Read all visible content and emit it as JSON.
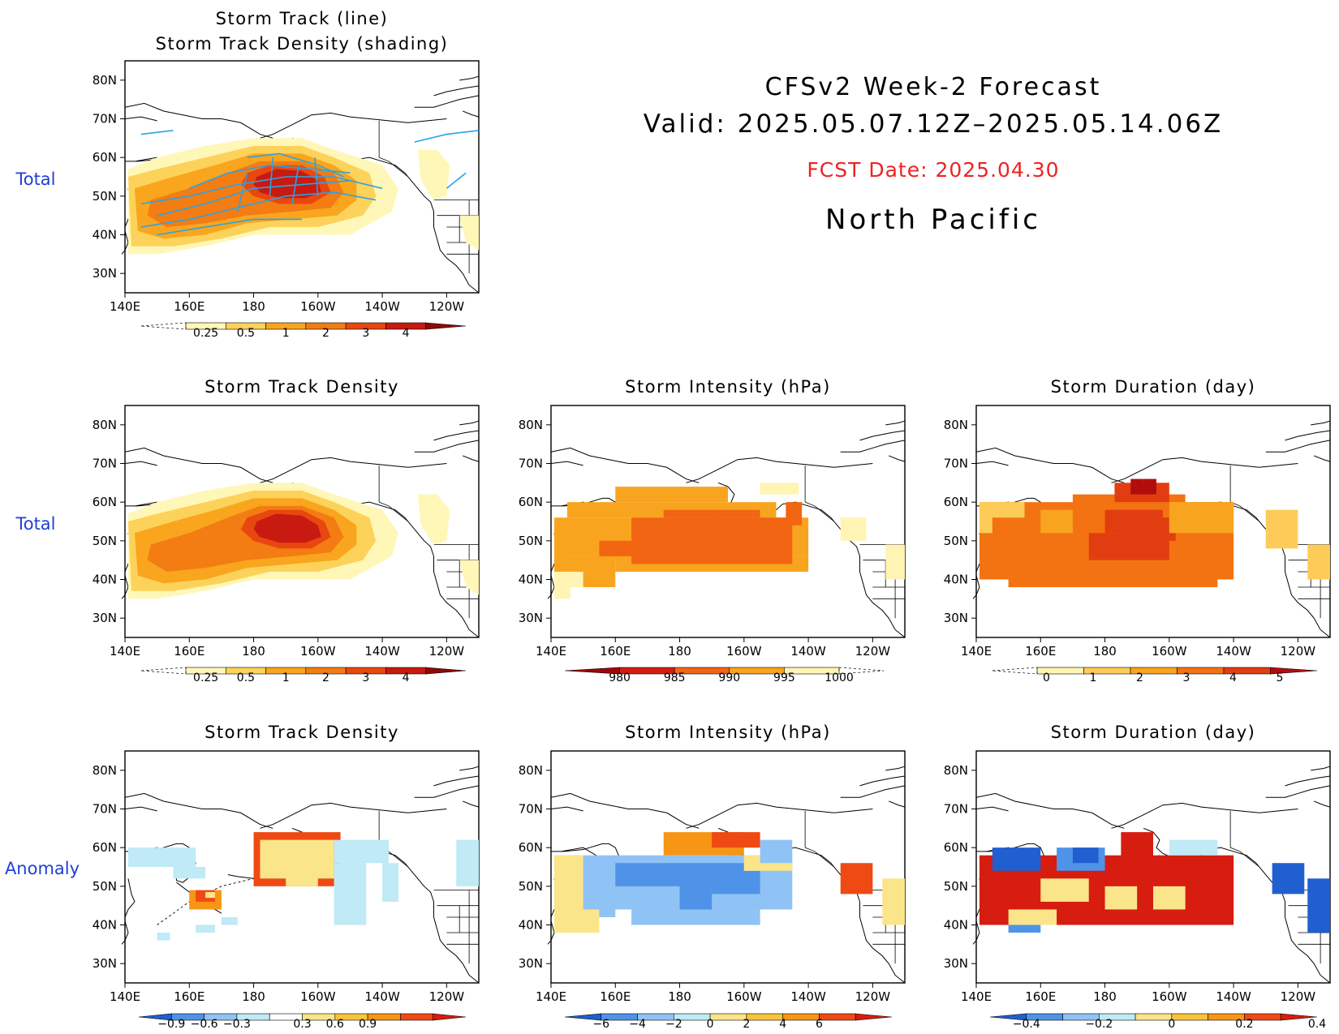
{
  "header": {
    "title": "CFSv2 Week-2 Forecast",
    "valid": "Valid: 2025.05.07.12Z–2025.05.14.06Z",
    "fcst_date": "FCST Date: 2025.04.30",
    "region": "North Pacific"
  },
  "row_labels": [
    "Total",
    "Total",
    "Anomaly"
  ],
  "colors": {
    "density": [
      "#fff7b8",
      "#fdd25a",
      "#f9a51e",
      "#f37c13",
      "#e84710",
      "#c81a10",
      "#8e0808"
    ],
    "intensity_total": [
      "#a00606",
      "#d51c10",
      "#f26512",
      "#f9a41e",
      "#fff4b4"
    ],
    "duration_total": [
      "#fff4b4",
      "#fdcc58",
      "#f9a41e",
      "#f37312",
      "#e23d10",
      "#b20d0d"
    ],
    "anomaly_neg": [
      "#1f5fd0",
      "#4f93e8",
      "#8fc3f5",
      "#bfeaf6"
    ],
    "anomaly_pos": [
      "#fbe58a",
      "#f9c43a",
      "#f79514",
      "#ef4a14",
      "#d71c10"
    ],
    "track_line": "#2aa3e5",
    "row_label": "#1f3fd6",
    "fcst": "#ee2222"
  },
  "chart_data": [
    {
      "id": "storm-track-line",
      "type": "heatmap",
      "title_lines": [
        "Storm Track (line)",
        "Storm Track Density (shading)"
      ],
      "x_ticks": [
        "140E",
        "160E",
        "180",
        "160W",
        "140W",
        "120W"
      ],
      "y_ticks": [
        "80N",
        "70N",
        "60N",
        "50N",
        "40N",
        "30N"
      ],
      "xlim": [
        140,
        250
      ],
      "ylim": [
        25,
        85
      ],
      "colorbar": {
        "labels": [
          "0.25",
          "0.5",
          "1",
          "2",
          "3",
          "4"
        ]
      }
    },
    {
      "id": "track-density-total",
      "type": "heatmap",
      "title": "Storm Track Density",
      "x_ticks": [
        "140E",
        "160E",
        "180",
        "160W",
        "140W",
        "120W"
      ],
      "y_ticks": [
        "80N",
        "70N",
        "60N",
        "50N",
        "40N",
        "30N"
      ],
      "xlim": [
        140,
        250
      ],
      "ylim": [
        25,
        85
      ],
      "colorbar": {
        "labels": [
          "0.25",
          "0.5",
          "1",
          "2",
          "3",
          "4"
        ]
      }
    },
    {
      "id": "intensity-total",
      "type": "heatmap",
      "title": "Storm Intensity (hPa)",
      "x_ticks": [
        "140E",
        "160E",
        "180",
        "160W",
        "140W",
        "120W"
      ],
      "y_ticks": [
        "80N",
        "70N",
        "60N",
        "50N",
        "40N",
        "30N"
      ],
      "xlim": [
        140,
        250
      ],
      "ylim": [
        25,
        85
      ],
      "colorbar": {
        "labels": [
          "980",
          "985",
          "990",
          "995",
          "1000"
        ]
      }
    },
    {
      "id": "duration-total",
      "type": "heatmap",
      "title": "Storm Duration (day)",
      "x_ticks": [
        "140E",
        "160E",
        "180",
        "160W",
        "140W",
        "120W"
      ],
      "y_ticks": [
        "80N",
        "70N",
        "60N",
        "50N",
        "40N",
        "30N"
      ],
      "xlim": [
        140,
        250
      ],
      "ylim": [
        25,
        85
      ],
      "colorbar": {
        "labels": [
          "0",
          "1",
          "2",
          "3",
          "4",
          "5"
        ]
      }
    },
    {
      "id": "track-density-anomaly",
      "type": "heatmap",
      "title": "Storm Track Density",
      "x_ticks": [
        "140E",
        "160E",
        "180",
        "160W",
        "140W",
        "120W"
      ],
      "y_ticks": [
        "80N",
        "70N",
        "60N",
        "50N",
        "40N",
        "30N"
      ],
      "xlim": [
        140,
        250
      ],
      "ylim": [
        25,
        85
      ],
      "colorbar": {
        "labels": [
          "−0.9",
          "−0.6",
          "−0.3",
          "0.3",
          "0.6",
          "0.9"
        ]
      }
    },
    {
      "id": "intensity-anomaly",
      "type": "heatmap",
      "title": "Storm Intensity (hPa)",
      "x_ticks": [
        "140E",
        "160E",
        "180",
        "160W",
        "140W",
        "120W"
      ],
      "y_ticks": [
        "80N",
        "70N",
        "60N",
        "50N",
        "40N",
        "30N"
      ],
      "xlim": [
        140,
        250
      ],
      "ylim": [
        25,
        85
      ],
      "colorbar": {
        "labels": [
          "−6",
          "−4",
          "−2",
          "0",
          "2",
          "4",
          "6"
        ]
      }
    },
    {
      "id": "duration-anomaly",
      "type": "heatmap",
      "title": "Storm Duration (day)",
      "x_ticks": [
        "140E",
        "160E",
        "180",
        "160W",
        "140W",
        "120W"
      ],
      "y_ticks": [
        "80N",
        "70N",
        "60N",
        "50N",
        "40N",
        "30N"
      ],
      "xlim": [
        140,
        250
      ],
      "ylim": [
        25,
        85
      ],
      "colorbar": {
        "labels": [
          "−0.4",
          "−0.2",
          "0",
          "0.2",
          "0.4"
        ]
      }
    }
  ]
}
